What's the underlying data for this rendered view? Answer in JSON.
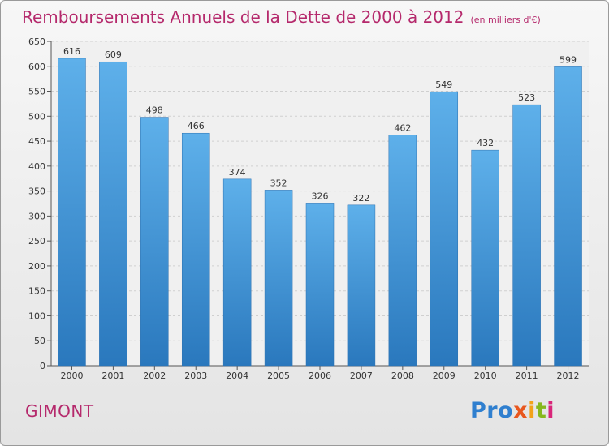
{
  "title": "Remboursements Annuels de la Dette de 2000 à 2012",
  "subtitle": "(en milliers d'€)",
  "commune": "GIMONT",
  "logo": [
    "Pro",
    "x",
    "i",
    "t",
    "i"
  ],
  "colors": {
    "title": "#b5296c",
    "bar_top": "#5eb0ea",
    "bar_bottom": "#2a78bd",
    "background_top": "#f7f7f7",
    "background_bottom": "#e4e4e4"
  },
  "chart_data": {
    "type": "bar",
    "title": "Remboursements Annuels de la Dette de 2000 à 2012",
    "subtitle": "(en milliers d'€)",
    "categories": [
      "2000",
      "2001",
      "2002",
      "2003",
      "2004",
      "2005",
      "2006",
      "2007",
      "2008",
      "2009",
      "2010",
      "2011",
      "2012"
    ],
    "values": [
      616,
      609,
      498,
      466,
      374,
      352,
      326,
      322,
      462,
      549,
      432,
      523,
      599
    ],
    "ylim": [
      0,
      650
    ],
    "yticks": [
      0,
      50,
      100,
      150,
      200,
      250,
      300,
      350,
      400,
      450,
      500,
      550,
      600,
      650
    ],
    "grid": true,
    "data_labels": true
  }
}
